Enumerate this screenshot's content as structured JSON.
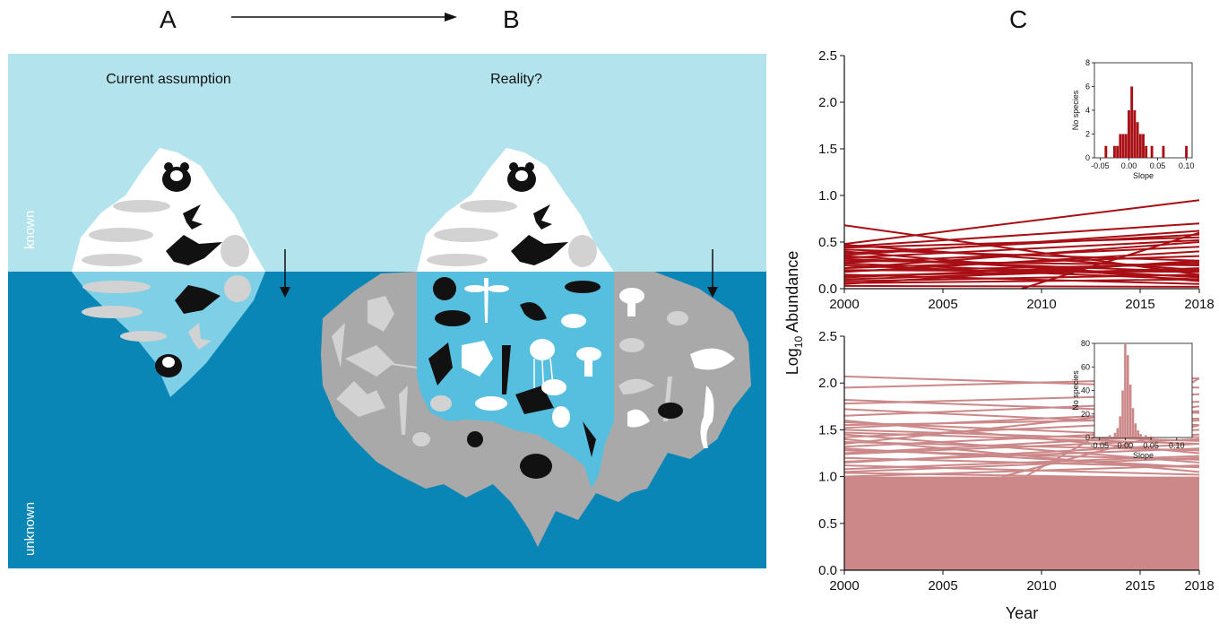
{
  "panels": {
    "a": "A",
    "b": "B",
    "c": "C"
  },
  "diagram": {
    "label_a": "Current assumption",
    "label_b": "Reality?",
    "known": "known",
    "unknown": "unknown",
    "colors": {
      "sky": "#b3e3ec",
      "sea": "#0a86b6",
      "ice": "#ffffff",
      "hidden_gray": "#a9a9a9",
      "silhouette_gray": "#d2d2d2",
      "silhouette_black": "#111111"
    }
  },
  "chart_data": [
    {
      "type": "line",
      "xlabel": "Year",
      "ylabel": "Log10 Abundance",
      "xlim": [
        2000,
        2018
      ],
      "ylim": [
        0,
        2.5
      ],
      "xticks": [
        "2000",
        "2005",
        "2010",
        "2015",
        "2018"
      ],
      "yticks": [
        "0.0",
        "0.5",
        "1.0",
        "1.5",
        "2.0",
        "2.5"
      ],
      "color": "#a80f14",
      "series": [
        {
          "x": [
            2000,
            2018
          ],
          "y": [
            0.68,
            0.15
          ]
        },
        {
          "x": [
            2000,
            2018
          ],
          "y": [
            0.48,
            0.95
          ]
        },
        {
          "x": [
            2000,
            2018
          ],
          "y": [
            0.47,
            0.2
          ]
        },
        {
          "x": [
            2000,
            2018
          ],
          "y": [
            0.45,
            0.7
          ]
        },
        {
          "x": [
            2000,
            2018
          ],
          "y": [
            0.42,
            0.3
          ]
        },
        {
          "x": [
            2000,
            2018
          ],
          "y": [
            0.38,
            0.58
          ]
        },
        {
          "x": [
            2000,
            2018
          ],
          "y": [
            0.35,
            0.12
          ]
        },
        {
          "x": [
            2000,
            2018
          ],
          "y": [
            0.33,
            0.52
          ]
        },
        {
          "x": [
            2000,
            2018
          ],
          "y": [
            0.3,
            0.25
          ]
        },
        {
          "x": [
            2000,
            2018
          ],
          "y": [
            0.28,
            0.45
          ]
        },
        {
          "x": [
            2000,
            2018
          ],
          "y": [
            0.25,
            0.1
          ]
        },
        {
          "x": [
            2000,
            2018
          ],
          "y": [
            0.22,
            0.35
          ]
        },
        {
          "x": [
            2000,
            2018
          ],
          "y": [
            0.2,
            0.18
          ]
        },
        {
          "x": [
            2000,
            2018
          ],
          "y": [
            0.18,
            0.4
          ]
        },
        {
          "x": [
            2000,
            2018
          ],
          "y": [
            0.15,
            0.05
          ]
        },
        {
          "x": [
            2000,
            2018
          ],
          "y": [
            0.12,
            0.28
          ]
        },
        {
          "x": [
            2000,
            2018
          ],
          "y": [
            0.1,
            0.22
          ]
        },
        {
          "x": [
            2000,
            2018
          ],
          "y": [
            0.08,
            0.15
          ]
        },
        {
          "x": [
            2000,
            2018
          ],
          "y": [
            0.05,
            0.3
          ]
        },
        {
          "x": [
            2000,
            2018
          ],
          "y": [
            0.4,
            0.08
          ]
        },
        {
          "x": [
            2000,
            2018
          ],
          "y": [
            0.36,
            0.62
          ]
        },
        {
          "x": [
            2000,
            2018
          ],
          "y": [
            0.27,
            0.13
          ]
        },
        {
          "x": [
            2000,
            2018
          ],
          "y": [
            0.22,
            0.5
          ]
        },
        {
          "x": [
            2000,
            2018
          ],
          "y": [
            0.14,
            0.2
          ]
        },
        {
          "x": [
            2000,
            2018
          ],
          "y": [
            0.06,
            0.1
          ]
        },
        {
          "x": [
            2000,
            2018
          ],
          "y": [
            0.32,
            0.18
          ]
        },
        {
          "x": [
            2000,
            2018
          ],
          "y": [
            0.19,
            0.26
          ]
        },
        {
          "x": [
            2000,
            2018
          ],
          "y": [
            0.44,
            0.55
          ]
        },
        {
          "x": [
            2000,
            2018
          ],
          "y": [
            0.03,
            0.02
          ]
        },
        {
          "x": [
            2009,
            2018
          ],
          "y": [
            0.0,
            0.6
          ]
        }
      ],
      "inset": {
        "type": "bar",
        "xlabel": "Slope",
        "ylabel": "No species",
        "xlim": [
          -0.06,
          0.11
        ],
        "ylim": [
          0,
          8
        ],
        "xticks": [
          "-0.05",
          "0.00",
          "0.05",
          "0.10"
        ],
        "yticks": [
          "0",
          "2",
          "4",
          "6",
          "8"
        ],
        "x": [
          -0.04,
          -0.025,
          -0.02,
          -0.015,
          -0.01,
          -0.005,
          0.0,
          0.005,
          0.01,
          0.015,
          0.02,
          0.025,
          0.03,
          0.04,
          0.06,
          0.1
        ],
        "values": [
          1,
          1,
          1,
          2,
          2,
          2,
          4,
          6,
          4,
          3,
          2,
          2,
          1,
          1,
          1,
          1
        ]
      }
    },
    {
      "type": "line",
      "xlabel": "Year",
      "ylabel": "Log10 Abundance",
      "xlim": [
        2000,
        2018
      ],
      "ylim": [
        0,
        2.5
      ],
      "xticks": [
        "2000",
        "2005",
        "2010",
        "2015",
        "2018"
      ],
      "yticks": [
        "0.0",
        "0.5",
        "1.0",
        "1.5",
        "2.0",
        "2.5"
      ],
      "color": "#cc8888",
      "series": [
        {
          "x": [
            2000,
            2018
          ],
          "y": [
            2.07,
            1.95
          ]
        },
        {
          "x": [
            2000,
            2018
          ],
          "y": [
            1.95,
            2.05
          ]
        },
        {
          "x": [
            2000,
            2018
          ],
          "y": [
            1.82,
            1.68
          ]
        },
        {
          "x": [
            2000,
            2018
          ],
          "y": [
            1.78,
            1.88
          ]
        },
        {
          "x": [
            2000,
            2018
          ],
          "y": [
            1.72,
            1.55
          ]
        },
        {
          "x": [
            2000,
            2018
          ],
          "y": [
            1.65,
            1.8
          ]
        },
        {
          "x": [
            2000,
            2018
          ],
          "y": [
            1.58,
            1.42
          ]
        },
        {
          "x": [
            2000,
            2018
          ],
          "y": [
            1.52,
            1.7
          ]
        },
        {
          "x": [
            2000,
            2018
          ],
          "y": [
            1.47,
            1.35
          ]
        },
        {
          "x": [
            2000,
            2018
          ],
          "y": [
            1.42,
            1.6
          ]
        },
        {
          "x": [
            2000,
            2018
          ],
          "y": [
            1.37,
            1.28
          ]
        },
        {
          "x": [
            2000,
            2018
          ],
          "y": [
            1.32,
            1.5
          ]
        },
        {
          "x": [
            2000,
            2018
          ],
          "y": [
            1.28,
            1.18
          ]
        },
        {
          "x": [
            2000,
            2018
          ],
          "y": [
            1.24,
            1.4
          ]
        },
        {
          "x": [
            2000,
            2018
          ],
          "y": [
            1.2,
            1.1
          ]
        },
        {
          "x": [
            2000,
            2018
          ],
          "y": [
            1.16,
            1.3
          ]
        },
        {
          "x": [
            2000,
            2018
          ],
          "y": [
            1.12,
            1.02
          ]
        },
        {
          "x": [
            2000,
            2018
          ],
          "y": [
            1.08,
            1.22
          ]
        },
        {
          "x": [
            2000,
            2018
          ],
          "y": [
            1.04,
            0.98
          ]
        },
        {
          "x": [
            2000,
            2018
          ],
          "y": [
            1.0,
            1.12
          ]
        },
        {
          "x": [
            2000,
            2018
          ],
          "y": [
            1.6,
            1.25
          ]
        },
        {
          "x": [
            2000,
            2018
          ],
          "y": [
            1.35,
            1.75
          ]
        },
        {
          "x": [
            2000,
            2018
          ],
          "y": [
            1.45,
            1.15
          ]
        },
        {
          "x": [
            2000,
            2018
          ],
          "y": [
            1.55,
            1.62
          ]
        },
        {
          "x": [
            2000,
            2018
          ],
          "y": [
            1.25,
            1.45
          ]
        },
        {
          "x": [
            2000,
            2018
          ],
          "y": [
            1.4,
            1.05
          ]
        },
        {
          "x": [
            2000,
            2018
          ],
          "y": [
            1.15,
            1.35
          ]
        },
        {
          "x": [
            2000,
            2018
          ],
          "y": [
            1.05,
            1.2
          ]
        },
        {
          "x": [
            2000,
            2018
          ],
          "y": [
            1.3,
            1.1
          ]
        },
        {
          "x": [
            2000,
            2018
          ],
          "y": [
            1.5,
            1.38
          ]
        },
        {
          "x": [
            2009,
            2018
          ],
          "y": [
            0.98,
            2.05
          ]
        },
        {
          "x": [
            2008,
            2018
          ],
          "y": [
            1.0,
            1.55
          ]
        }
      ],
      "dense_fill": {
        "y_from": 0,
        "y_to": 1.0
      },
      "inset": {
        "type": "bar",
        "xlabel": "Slope",
        "ylabel": "No species",
        "xlim": [
          -0.06,
          0.13
        ],
        "ylim": [
          0,
          80
        ],
        "xticks": [
          "-0.05",
          "0.00",
          "0.05",
          "0.10"
        ],
        "yticks": [
          "0",
          "20",
          "40",
          "60",
          "80"
        ],
        "x": [
          -0.03,
          -0.02,
          -0.015,
          -0.01,
          -0.005,
          0.0,
          0.005,
          0.01,
          0.015,
          0.02,
          0.025,
          0.03,
          0.04,
          0.05
        ],
        "values": [
          2,
          4,
          8,
          18,
          40,
          80,
          70,
          45,
          25,
          12,
          6,
          3,
          2,
          1
        ]
      }
    }
  ]
}
